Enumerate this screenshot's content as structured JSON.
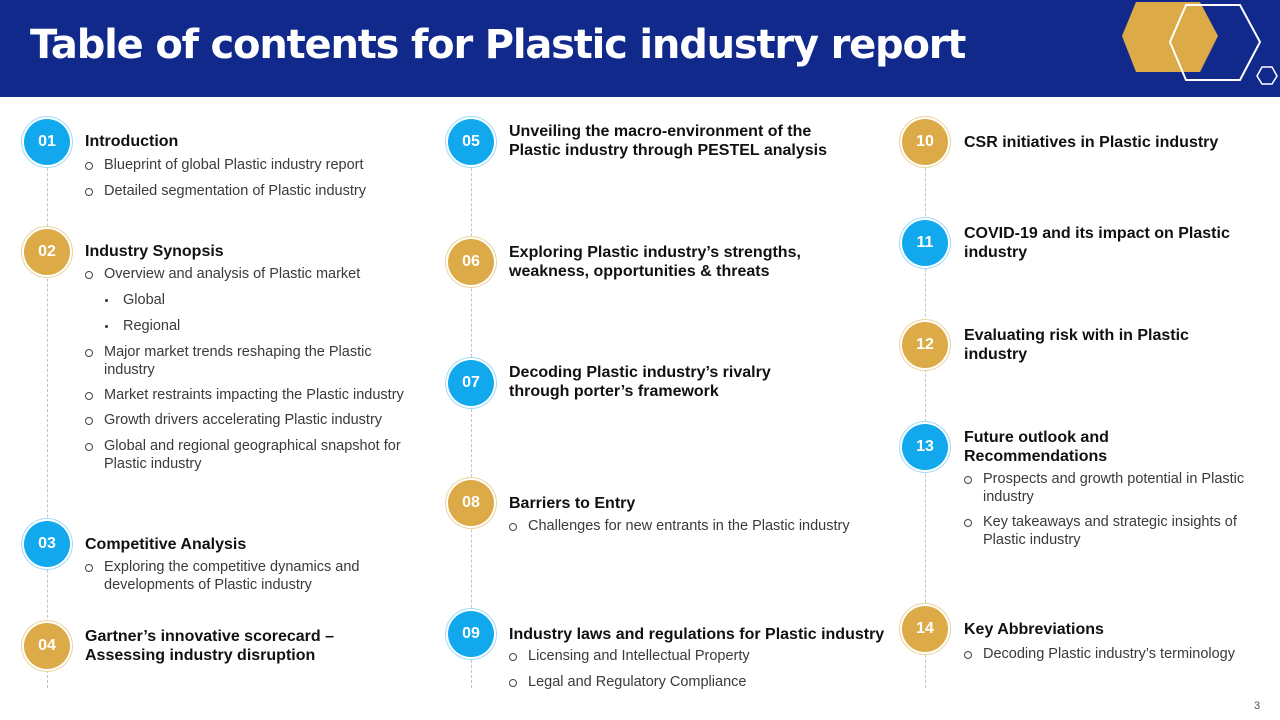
{
  "title": "Table of contents for Plastic industry report",
  "page_number": "3",
  "colors": {
    "header_bg": "#12298c",
    "blue": "#11a8ee",
    "gold": "#dcab48"
  },
  "items": [
    {
      "num": "01",
      "color": "blue",
      "heading": "Introduction",
      "subs": [
        "Blueprint of global Plastic industry report",
        "Detailed segmentation of Plastic industry"
      ]
    },
    {
      "num": "02",
      "color": "gold",
      "heading": "Industry Synopsis",
      "subs": [
        "Overview and analysis of Plastic market",
        "Global",
        "Regional",
        "Major market trends reshaping the Plastic industry",
        "Market restraints impacting the Plastic industry",
        "Growth drivers accelerating Plastic industry",
        "Global and regional geographical snapshot for Plastic industry"
      ]
    },
    {
      "num": "03",
      "color": "blue",
      "heading": "Competitive Analysis",
      "subs": [
        "Exploring the competitive dynamics and developments of Plastic industry"
      ]
    },
    {
      "num": "04",
      "color": "gold",
      "heading": "Gartner’s innovative scorecard – Assessing industry disruption",
      "subs": []
    },
    {
      "num": "05",
      "color": "blue",
      "heading": "Unveiling the macro-environment of the Plastic industry through PESTEL analysis",
      "subs": []
    },
    {
      "num": "06",
      "color": "gold",
      "heading": "Exploring Plastic industry’s strengths, weakness, opportunities & threats",
      "subs": []
    },
    {
      "num": "07",
      "color": "blue",
      "heading": "Decoding Plastic industry’s rivalry through porter’s framework",
      "subs": []
    },
    {
      "num": "08",
      "color": "gold",
      "heading": "Barriers to Entry",
      "subs": [
        "Challenges for new entrants in the Plastic industry"
      ]
    },
    {
      "num": "09",
      "color": "blue",
      "heading": "Industry laws and regulations for Plastic industry",
      "subs": [
        "Licensing and Intellectual Property",
        "Legal and Regulatory Compliance"
      ]
    },
    {
      "num": "10",
      "color": "gold",
      "heading": "CSR initiatives in Plastic industry",
      "subs": []
    },
    {
      "num": "11",
      "color": "blue",
      "heading": "COVID-19 and its impact on Plastic industry",
      "subs": []
    },
    {
      "num": "12",
      "color": "gold",
      "heading": "Evaluating risk with in Plastic industry",
      "subs": []
    },
    {
      "num": "13",
      "color": "blue",
      "heading": "Future outlook and Recommendations",
      "subs": [
        "Prospects and growth potential in Plastic industry",
        "Key takeaways and strategic insights of Plastic industry"
      ]
    },
    {
      "num": "14",
      "color": "gold",
      "heading": "Key Abbreviations",
      "subs": [
        "Decoding Plastic industry’s terminology"
      ]
    }
  ]
}
